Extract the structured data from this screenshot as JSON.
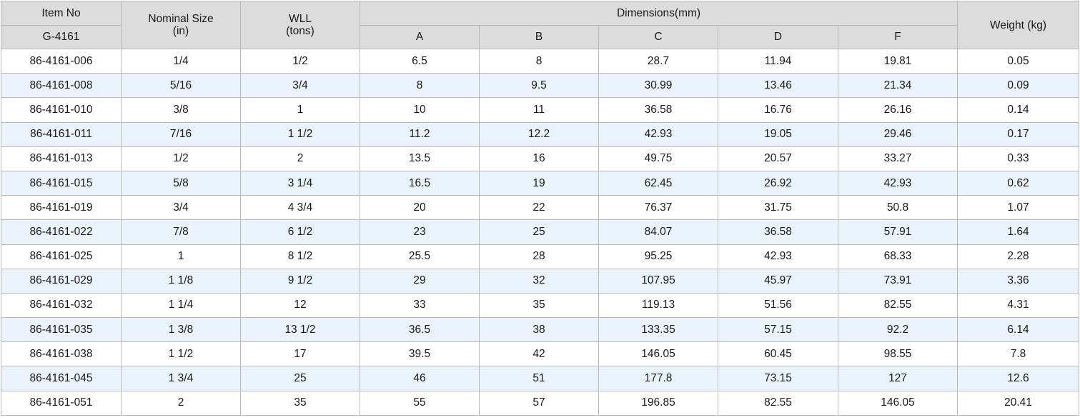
{
  "header": {
    "item_no": "Item No",
    "series": "G-4161",
    "nominal_size": "Nominal Size",
    "nominal_size_unit": "(in)",
    "wll": "WLL",
    "wll_unit": "(tons)",
    "dimensions": "Dimensions(mm)",
    "dim_columns": [
      "A",
      "B",
      "C",
      "D",
      "F"
    ],
    "weight": "Weight (kg)"
  },
  "rows": [
    [
      "86-4161-006",
      "1/4",
      "1/2",
      "6.5",
      "8",
      "28.7",
      "11.94",
      "19.81",
      "0.05"
    ],
    [
      "86-4161-008",
      "5/16",
      "3/4",
      "8",
      "9.5",
      "30.99",
      "13.46",
      "21.34",
      "0.09"
    ],
    [
      "86-4161-010",
      "3/8",
      "1",
      "10",
      "11",
      "36.58",
      "16.76",
      "26.16",
      "0.14"
    ],
    [
      "86-4161-011",
      "7/16",
      "1 1/2",
      "11.2",
      "12.2",
      "42.93",
      "19.05",
      "29.46",
      "0.17"
    ],
    [
      "86-4161-013",
      "1/2",
      "2",
      "13.5",
      "16",
      "49.75",
      "20.57",
      "33.27",
      "0.33"
    ],
    [
      "86-4161-015",
      "5/8",
      "3 1/4",
      "16.5",
      "19",
      "62.45",
      "26.92",
      "42.93",
      "0.62"
    ],
    [
      "86-4161-019",
      "3/4",
      "4 3/4",
      "20",
      "22",
      "76.37",
      "31.75",
      "50.8",
      "1.07"
    ],
    [
      "86-4161-022",
      "7/8",
      "6 1/2",
      "23",
      "25",
      "84.07",
      "36.58",
      "57.91",
      "1.64"
    ],
    [
      "86-4161-025",
      "1",
      "8 1/2",
      "25.5",
      "28",
      "95.25",
      "42.93",
      "68.33",
      "2.28"
    ],
    [
      "86-4161-029",
      "1 1/8",
      "9 1/2",
      "29",
      "32",
      "107.95",
      "45.97",
      "73.91",
      "3.36"
    ],
    [
      "86-4161-032",
      "1 1/4",
      "12",
      "33",
      "35",
      "119.13",
      "51.56",
      "82.55",
      "4.31"
    ],
    [
      "86-4161-035",
      "1 3/8",
      "13 1/2",
      "36.5",
      "38",
      "133.35",
      "57.15",
      "92.2",
      "6.14"
    ],
    [
      "86-4161-038",
      "1 1/2",
      "17",
      "39.5",
      "42",
      "146.05",
      "60.45",
      "98.55",
      "7.8"
    ],
    [
      "86-4161-045",
      "1 3/4",
      "25",
      "46",
      "51",
      "177.8",
      "73.15",
      "127",
      "12.6"
    ],
    [
      "86-4161-051",
      "2",
      "35",
      "55",
      "57",
      "196.85",
      "82.55",
      "146.05",
      "20.41"
    ]
  ]
}
